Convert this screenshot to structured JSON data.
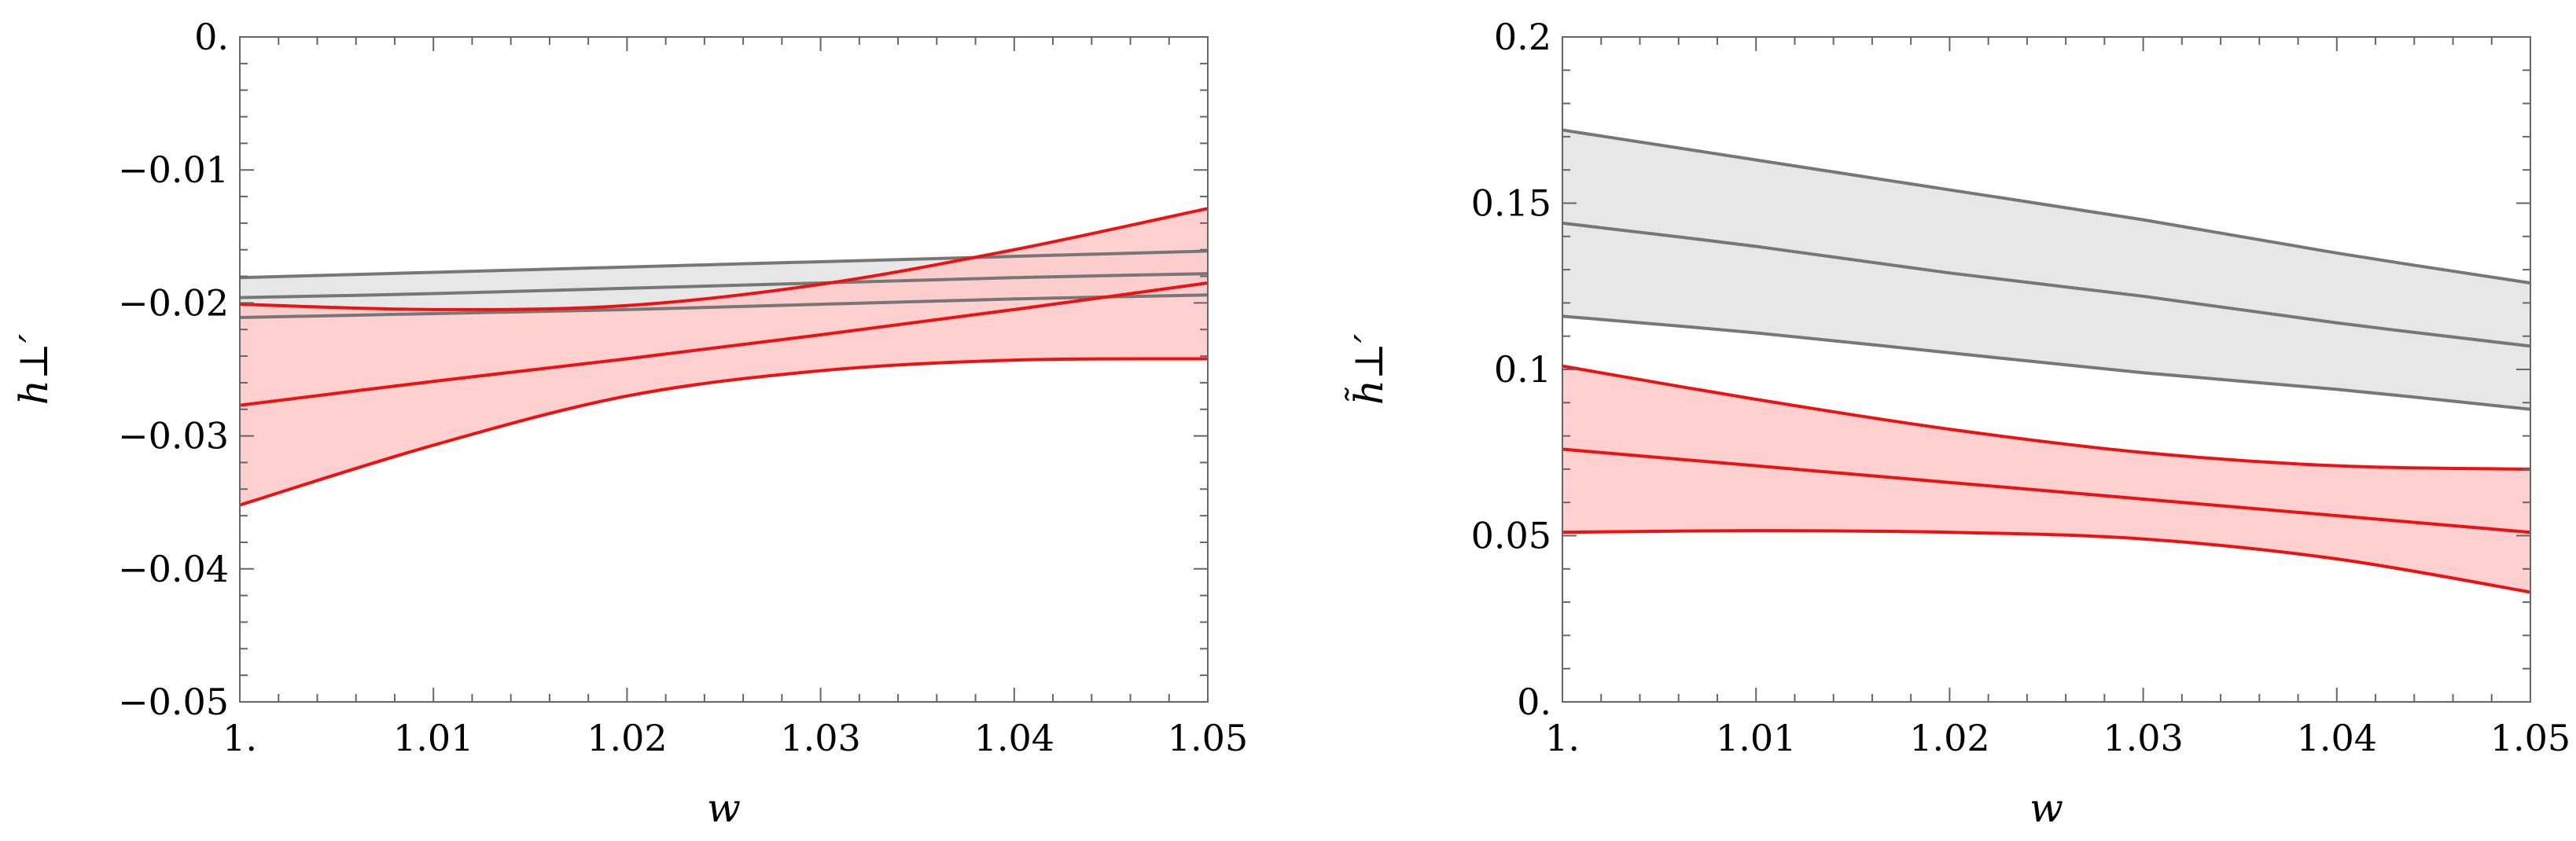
{
  "chart_data": [
    {
      "type": "line",
      "xlabel": "w",
      "ylabel": "h⊥′",
      "xlim": [
        1.0,
        1.05
      ],
      "ylim": [
        -0.05,
        0.0
      ],
      "x_ticks": [
        1.0,
        1.01,
        1.02,
        1.03,
        1.04,
        1.05
      ],
      "x_tick_labels": [
        "1.",
        "1.01",
        "1.02",
        "1.03",
        "1.04",
        "1.05"
      ],
      "y_ticks": [
        -0.05,
        -0.04,
        -0.03,
        -0.02,
        -0.01,
        0.0
      ],
      "y_tick_labels": [
        "−0.05",
        "−0.04",
        "−0.03",
        "−0.02",
        "−0.01",
        "0."
      ],
      "x": [
        1.0,
        1.01,
        1.02,
        1.03,
        1.04,
        1.05
      ],
      "series": [
        {
          "name": "gray-band",
          "color": "#777777",
          "fill": "#e3e3e3",
          "upper": [
            -0.0181,
            -0.0177,
            -0.0173,
            -0.0169,
            -0.0165,
            -0.0161
          ],
          "central": [
            -0.0196,
            -0.0193,
            -0.0189,
            -0.0185,
            -0.0181,
            -0.0178
          ],
          "lower": [
            -0.0211,
            -0.0208,
            -0.0205,
            -0.0201,
            -0.0197,
            -0.0194
          ]
        },
        {
          "name": "red-band",
          "color": "#ee1111",
          "fill": "#ffc8c8",
          "upper": [
            -0.0201,
            -0.0205,
            -0.0202,
            -0.0186,
            -0.016,
            -0.0129
          ],
          "central": [
            -0.0277,
            -0.0259,
            -0.0242,
            -0.0224,
            -0.0205,
            -0.0185
          ],
          "lower": [
            -0.0352,
            -0.0307,
            -0.027,
            -0.0251,
            -0.0243,
            -0.0242
          ]
        }
      ]
    },
    {
      "type": "line",
      "xlabel": "w",
      "ylabel": "h̃⊥′",
      "xlim": [
        1.0,
        1.05
      ],
      "ylim": [
        0.0,
        0.2
      ],
      "x_ticks": [
        1.0,
        1.01,
        1.02,
        1.03,
        1.04,
        1.05
      ],
      "x_tick_labels": [
        "1.",
        "1.01",
        "1.02",
        "1.03",
        "1.04",
        "1.05"
      ],
      "y_ticks": [
        0.0,
        0.05,
        0.1,
        0.15,
        0.2
      ],
      "y_tick_labels": [
        "0.",
        "0.05",
        "0.1",
        "0.15",
        "0.2"
      ],
      "x": [
        1.0,
        1.01,
        1.02,
        1.03,
        1.04,
        1.05
      ],
      "series": [
        {
          "name": "gray-band",
          "color": "#777777",
          "fill": "#e3e3e3",
          "upper": [
            0.172,
            0.163,
            0.154,
            0.145,
            0.135,
            0.126
          ],
          "central": [
            0.144,
            0.137,
            0.129,
            0.122,
            0.114,
            0.107
          ],
          "lower": [
            0.116,
            0.111,
            0.105,
            0.099,
            0.094,
            0.088
          ]
        },
        {
          "name": "red-band",
          "color": "#ee1111",
          "fill": "#ffc8c8",
          "upper": [
            0.101,
            0.091,
            0.082,
            0.075,
            0.071,
            0.07
          ],
          "central": [
            0.076,
            0.071,
            0.066,
            0.061,
            0.056,
            0.051
          ],
          "lower": [
            0.051,
            0.0515,
            0.051,
            0.049,
            0.043,
            0.033
          ]
        }
      ]
    }
  ]
}
